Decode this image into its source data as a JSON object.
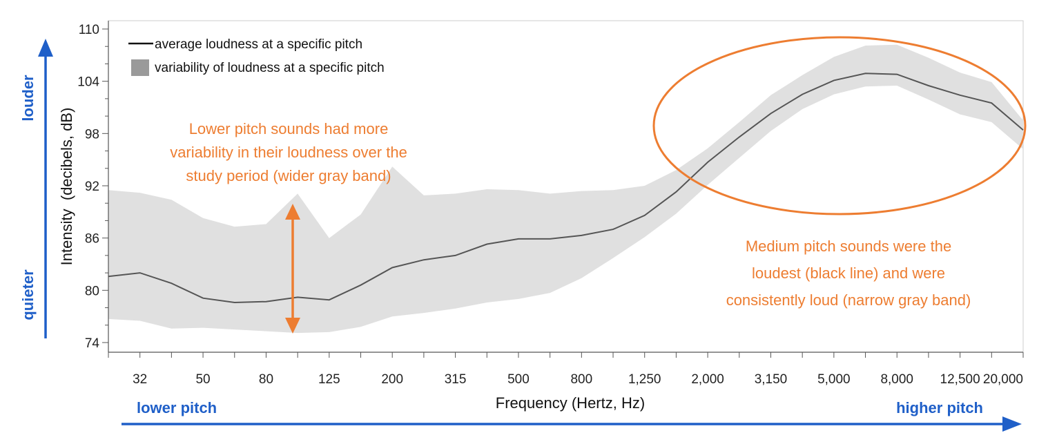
{
  "chart_data": {
    "type": "area",
    "title": "",
    "xlabel": "Frequency (Hertz, Hz)",
    "ylabel": "Intensity  (decibels, dB)",
    "ylim": [
      74,
      110
    ],
    "x_scale": "log-frequency (one-third octave bands)",
    "x_ticks": [
      "32",
      "50",
      "80",
      "125",
      "200",
      "315",
      "500",
      "800",
      "1,250",
      "2,000",
      "3,150",
      "5,000",
      "8,000",
      "12,500",
      "20,000"
    ],
    "y_ticks": [
      "74",
      "80",
      "86",
      "92",
      "98",
      "104",
      "110"
    ],
    "x": [
      25,
      32,
      40,
      50,
      63,
      80,
      100,
      125,
      160,
      200,
      250,
      315,
      400,
      500,
      630,
      800,
      1000,
      1250,
      1600,
      2000,
      2500,
      3150,
      4000,
      5000,
      6300,
      8000,
      10000,
      12500,
      16000,
      20000
    ],
    "series": [
      {
        "name": "average loudness at a specific pitch",
        "kind": "line",
        "color": "#555555",
        "values": [
          81.6,
          82.0,
          80.8,
          79.1,
          78.6,
          78.7,
          79.2,
          78.9,
          80.6,
          82.6,
          83.5,
          84.0,
          85.3,
          85.9,
          85.9,
          86.3,
          87.0,
          88.6,
          91.3,
          94.7,
          97.6,
          100.3,
          102.5,
          104.1,
          104.9,
          104.8,
          103.5,
          102.4,
          101.5,
          98.4
        ]
      },
      {
        "name": "variability of loudness at a specific pitch",
        "kind": "band",
        "color": "#E0E0E0",
        "upper": [
          91.5,
          91.2,
          90.4,
          88.3,
          87.3,
          87.6,
          91.1,
          86.0,
          88.7,
          94.2,
          90.9,
          91.1,
          91.6,
          91.5,
          91.1,
          91.4,
          91.5,
          92.0,
          93.8,
          96.3,
          99.3,
          102.4,
          104.7,
          106.8,
          108.1,
          108.2,
          106.7,
          105.0,
          103.9,
          99.5
        ],
        "lower": [
          76.7,
          76.5,
          75.6,
          75.7,
          75.5,
          75.3,
          75.1,
          75.2,
          75.8,
          77.0,
          77.4,
          77.9,
          78.6,
          79.0,
          79.7,
          81.4,
          83.7,
          86.1,
          88.8,
          92.1,
          95.2,
          98.3,
          100.8,
          102.5,
          103.4,
          103.5,
          101.9,
          100.2,
          99.3,
          96.2
        ]
      }
    ],
    "legend": {
      "placement": "top-left",
      "line_label": "average loudness at a specific pitch",
      "band_label": "variability of loudness at a specific pitch"
    },
    "annotations": {
      "left_text": [
        "Lower pitch sounds had more",
        "variability in their loudness over the",
        "study period (wider gray band)"
      ],
      "right_text": [
        "Medium pitch sounds were the",
        "loudest (black line) and were",
        "consistently loud (narrow gray band)"
      ]
    },
    "direction_labels": {
      "louder": "louder",
      "quieter": "quieter",
      "lower_pitch": "lower pitch",
      "higher_pitch": "higher pitch"
    },
    "colors": {
      "annotation": "#ED7D31",
      "direction": "#1F5FC8",
      "band": "#E0E0E0",
      "line": "#555555"
    },
    "grid": false
  }
}
